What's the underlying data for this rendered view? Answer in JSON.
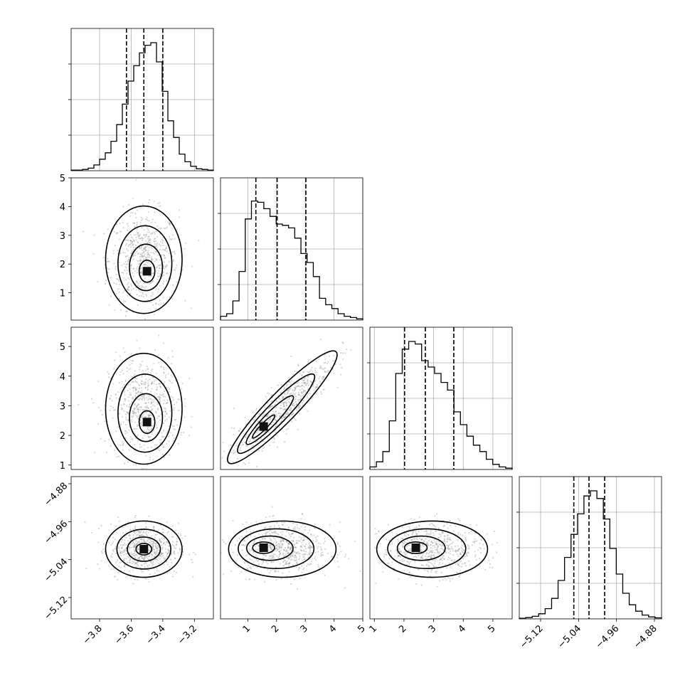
{
  "chart_data": {
    "type": "corner",
    "grid": true,
    "parameters": [
      {
        "range": [
          -3.98,
          -3.08
        ],
        "ticks": [
          -3.8,
          -3.6,
          -3.4,
          -3.2
        ],
        "tick_labels": [
          "−3.8",
          "−3.6",
          "−3.4",
          "−3.2"
        ],
        "quantiles": [
          -3.63,
          -3.52,
          -3.4
        ],
        "hist_bins": [
          0.005,
          0.005,
          0.01,
          0.02,
          0.045,
          0.09,
          0.14,
          0.23,
          0.36,
          0.52,
          0.7,
          0.82,
          0.92,
          0.98,
          1.0,
          0.85,
          0.62,
          0.39,
          0.26,
          0.13,
          0.07,
          0.035,
          0.015,
          0.01,
          0.005
        ]
      },
      {
        "range": [
          0.05,
          5.0
        ],
        "ticks": [
          1,
          2,
          3,
          4,
          5
        ],
        "tick_labels": [
          "1",
          "2",
          "3",
          "4",
          "5"
        ],
        "quantiles": [
          1.28,
          2.02,
          3.02
        ],
        "hist_bins": [
          0.03,
          0.05,
          0.15,
          0.38,
          0.79,
          0.93,
          0.92,
          0.87,
          0.81,
          0.75,
          0.74,
          0.72,
          0.64,
          0.52,
          0.45,
          0.34,
          0.17,
          0.12,
          0.09,
          0.05,
          0.03,
          0.02,
          0.01
        ]
      },
      {
        "range": [
          0.85,
          5.65
        ],
        "ticks": [
          1,
          2,
          3,
          4,
          5
        ],
        "tick_labels": [
          "1",
          "2",
          "3",
          "4",
          "5"
        ],
        "quantiles": [
          2.02,
          2.72,
          3.68
        ],
        "hist_bins": [
          0.02,
          0.06,
          0.14,
          0.38,
          0.75,
          0.94,
          1.0,
          0.98,
          0.85,
          0.8,
          0.75,
          0.68,
          0.62,
          0.45,
          0.35,
          0.26,
          0.19,
          0.14,
          0.08,
          0.04,
          0.02,
          0.01
        ]
      },
      {
        "range": [
          -5.165,
          -4.865
        ],
        "ticks": [
          -5.12,
          -5.04,
          -4.96,
          -4.88
        ],
        "tick_labels": [
          "−5.12",
          "−5.04",
          "−4.96",
          "−4.88"
        ],
        "quantiles": [
          -5.05,
          -5.018,
          -4.985
        ],
        "hist_bins": [
          0.005,
          0.01,
          0.02,
          0.04,
          0.08,
          0.16,
          0.3,
          0.48,
          0.66,
          0.82,
          0.96,
          1.0,
          0.94,
          0.78,
          0.55,
          0.35,
          0.2,
          0.11,
          0.06,
          0.03,
          0.015,
          0.008
        ]
      }
    ],
    "pairs": [
      {
        "xi": 0,
        "yi": 1,
        "mean": [
          -3.52,
          2.15
        ],
        "std": [
          0.11,
          0.85
        ],
        "corr": 0.0,
        "mode": [
          -3.5,
          1.75
        ]
      },
      {
        "xi": 0,
        "yi": 2,
        "mean": [
          -3.52,
          2.9
        ],
        "std": [
          0.11,
          0.85
        ],
        "corr": 0.0,
        "mode": [
          -3.5,
          2.45
        ]
      },
      {
        "xi": 0,
        "yi": 3,
        "mean": [
          -3.52,
          -5.018
        ],
        "std": [
          0.11,
          0.027
        ],
        "corr": 0.0,
        "mode": [
          -3.52,
          -5.018
        ]
      },
      {
        "xi": 1,
        "yi": 2,
        "mean": [
          2.2,
          2.95
        ],
        "std": [
          0.85,
          0.85
        ],
        "corr": 0.88,
        "mode": [
          1.55,
          2.3
        ]
      },
      {
        "xi": 1,
        "yi": 3,
        "mean": [
          2.2,
          -5.018
        ],
        "std": [
          0.85,
          0.027
        ],
        "corr": 0.0,
        "mode": [
          1.55,
          -5.015
        ]
      },
      {
        "xi": 2,
        "yi": 3,
        "mean": [
          2.95,
          -5.018
        ],
        "std": [
          0.85,
          0.027
        ],
        "corr": 0.0,
        "mode": [
          2.4,
          -5.015
        ]
      }
    ]
  }
}
